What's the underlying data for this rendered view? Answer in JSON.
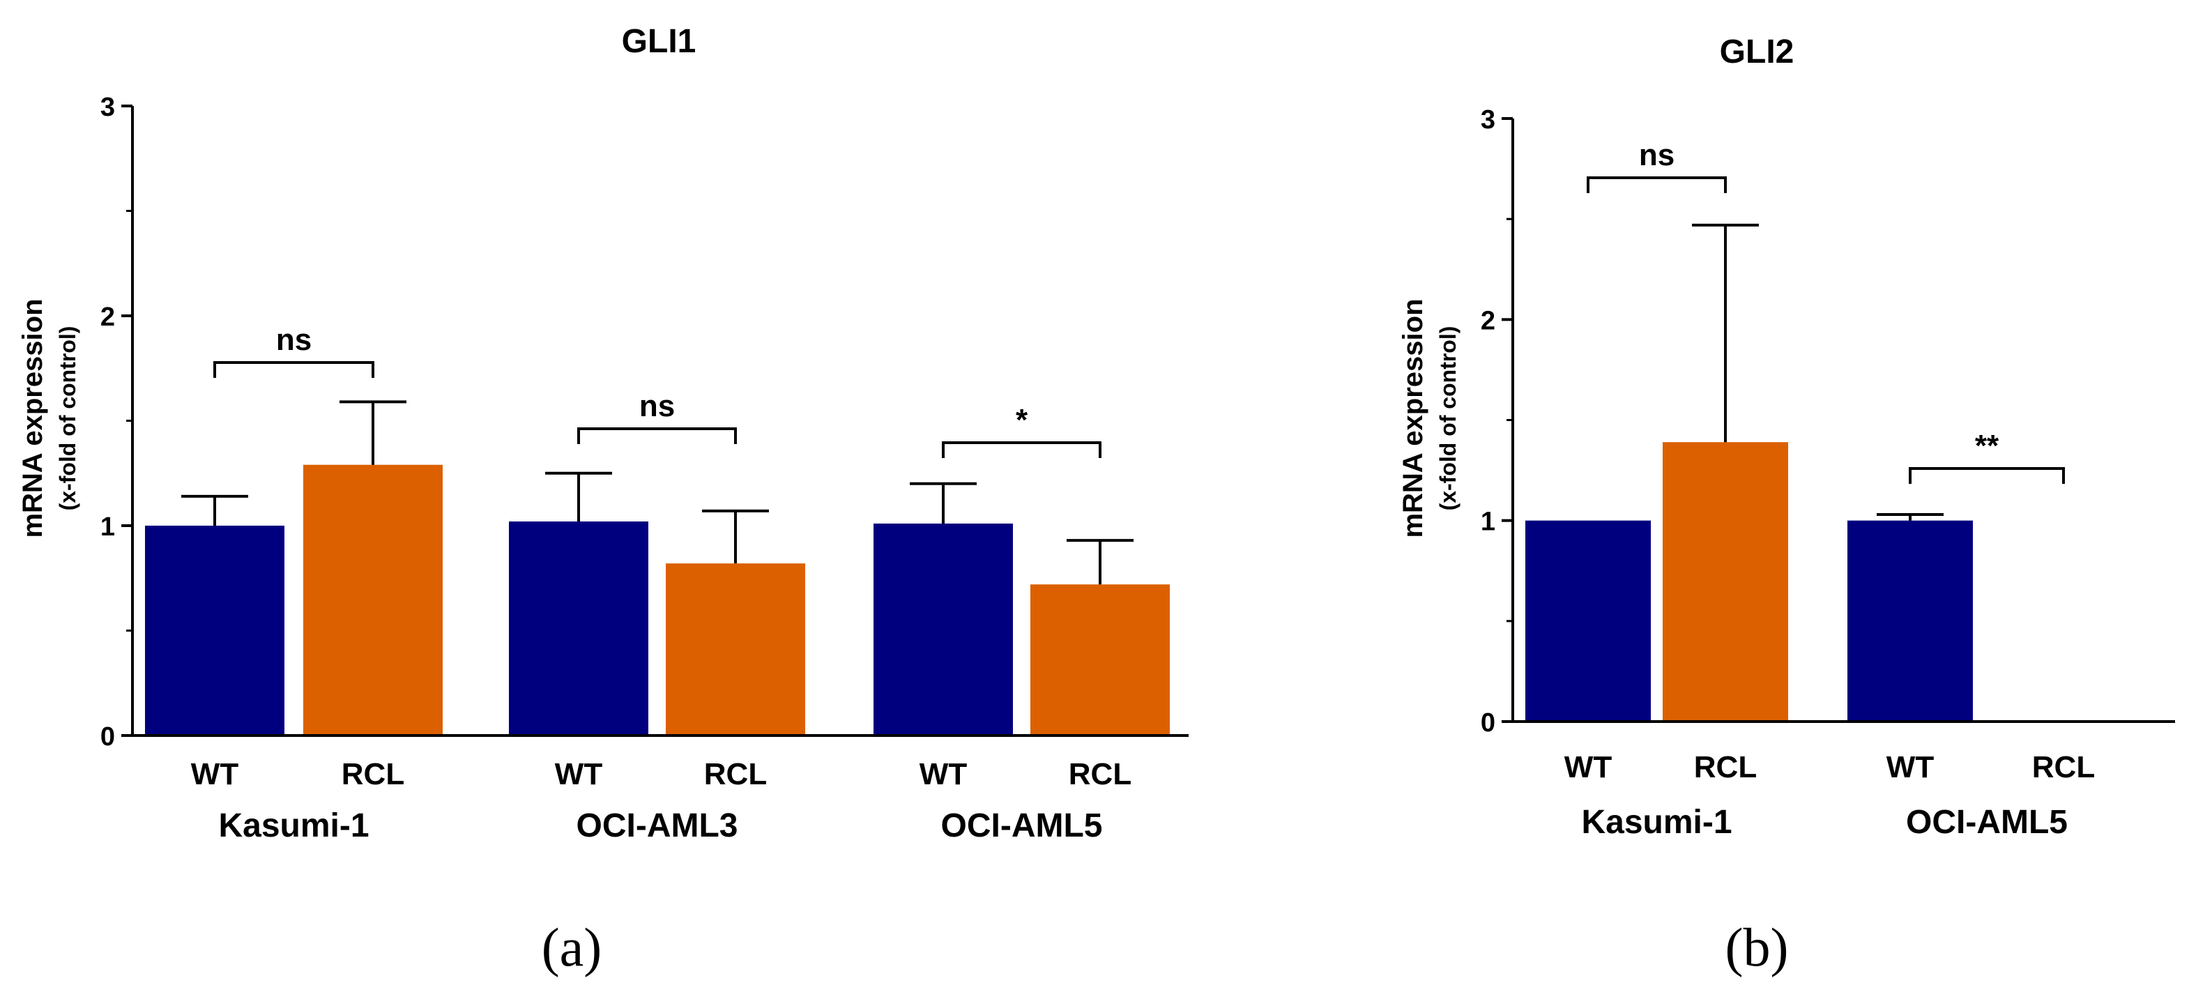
{
  "figure": {
    "panels": [
      {
        "label": "(a)"
      },
      {
        "label": "(b)"
      }
    ]
  },
  "chart_data": [
    {
      "type": "bar",
      "title": "GLI1",
      "ylabel": "mRNA expression",
      "ylabel_sub": "(x-fold of control)",
      "xlabel": "",
      "ylim": [
        0,
        3
      ],
      "yticks": [
        "0",
        "1",
        "2",
        "3"
      ],
      "grid": false,
      "legend": "none",
      "groups": [
        {
          "name": "Kasumi-1",
          "bars": [
            {
              "label": "WT",
              "value": 1.0,
              "error": 0.14,
              "color": "#00007F"
            },
            {
              "label": "RCL",
              "value": 1.29,
              "error": 0.3,
              "color": "#DC6000"
            }
          ],
          "significance": "ns"
        },
        {
          "name": "OCI-AML3",
          "bars": [
            {
              "label": "WT",
              "value": 1.02,
              "error": 0.23,
              "color": "#00007F"
            },
            {
              "label": "RCL",
              "value": 0.82,
              "error": 0.25,
              "color": "#DC6000"
            }
          ],
          "significance": "ns"
        },
        {
          "name": "OCI-AML5",
          "bars": [
            {
              "label": "WT",
              "value": 1.01,
              "error": 0.19,
              "color": "#00007F"
            },
            {
              "label": "RCL",
              "value": 0.72,
              "error": 0.21,
              "color": "#DC6000"
            }
          ],
          "significance": "*"
        }
      ]
    },
    {
      "type": "bar",
      "title": "GLI2",
      "ylabel": "mRNA expression",
      "ylabel_sub": "(x-fold of control)",
      "xlabel": "",
      "ylim": [
        0,
        3
      ],
      "yticks": [
        "0",
        "1",
        "2",
        "3"
      ],
      "grid": false,
      "legend": "none",
      "groups": [
        {
          "name": "Kasumi-1",
          "bars": [
            {
              "label": "WT",
              "value": 1.0,
              "error": 0.0,
              "color": "#00007F"
            },
            {
              "label": "RCL",
              "value": 1.39,
              "error": 1.08,
              "color": "#DC6000"
            }
          ],
          "significance": "ns"
        },
        {
          "name": "OCI-AML5",
          "bars": [
            {
              "label": "WT",
              "value": 1.0,
              "error": 0.03,
              "color": "#00007F"
            },
            {
              "label": "RCL",
              "value": 0.0,
              "error": 0.0,
              "color": "#DC6000"
            }
          ],
          "significance": "**"
        }
      ]
    }
  ]
}
